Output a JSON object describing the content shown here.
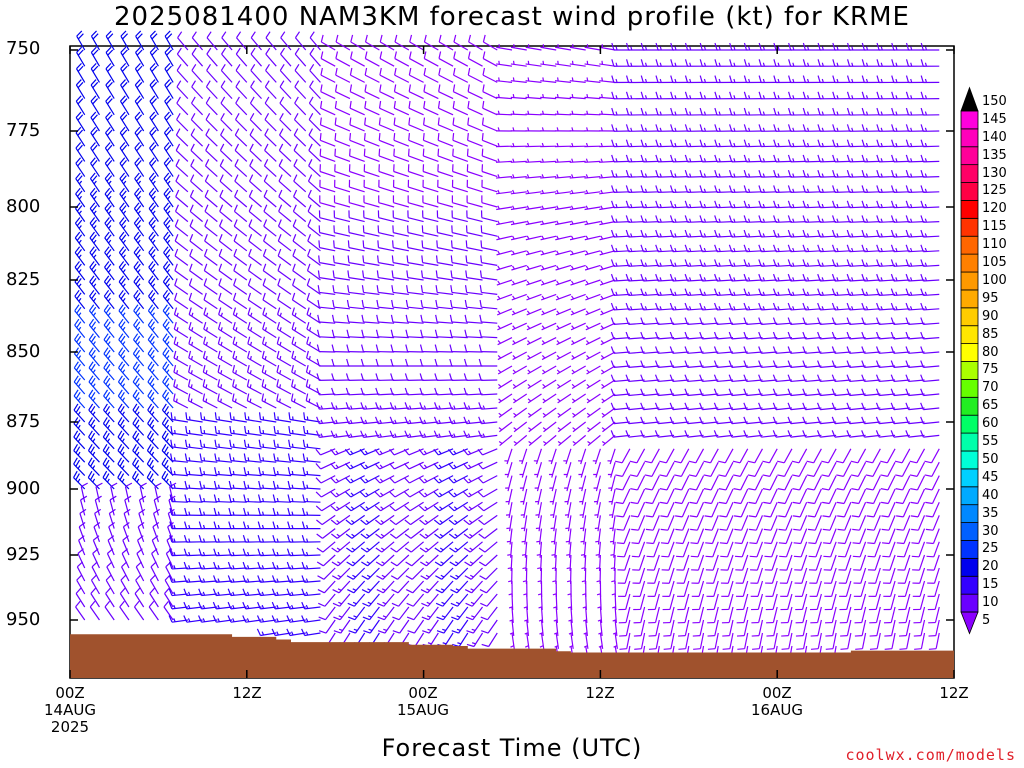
{
  "chart_data": {
    "type": "wind-barb profile",
    "title": "2025081400 NAM3KM forecast wind profile (kt) for KRME",
    "xlabel": "Forecast Time (UTC)",
    "x_ticks": [
      {
        "label": "00Z",
        "sub1": "14AUG",
        "sub2": "2025",
        "hour": 0
      },
      {
        "label": "12Z",
        "sub1": "",
        "sub2": "",
        "hour": 12
      },
      {
        "label": "00Z",
        "sub1": "15AUG",
        "sub2": "",
        "hour": 24
      },
      {
        "label": "12Z",
        "sub1": "",
        "sub2": "",
        "hour": 36
      },
      {
        "label": "00Z",
        "sub1": "16AUG",
        "sub2": "",
        "hour": 48
      },
      {
        "label": "12Z",
        "sub1": "",
        "sub2": "",
        "hour": 60
      }
    ],
    "y_ticks": [
      750,
      775,
      800,
      825,
      850,
      875,
      900,
      925,
      950
    ],
    "xlim_hours": [
      0,
      60
    ],
    "ylim_hpa": [
      750,
      965
    ],
    "colorbar": {
      "levels": [
        5,
        10,
        15,
        20,
        25,
        30,
        35,
        40,
        45,
        50,
        55,
        60,
        65,
        70,
        75,
        80,
        85,
        90,
        95,
        100,
        105,
        110,
        115,
        120,
        125,
        130,
        135,
        140,
        145,
        150
      ],
      "colors": [
        "#8a00ff",
        "#6a00ff",
        "#3300ff",
        "#0000ee",
        "#0033ff",
        "#0060ff",
        "#0088ff",
        "#00aaff",
        "#00d0ff",
        "#00ffd8",
        "#00ffaa",
        "#00ff66",
        "#22ee22",
        "#66ff00",
        "#aaff00",
        "#ffff00",
        "#ffe600",
        "#ffcc00",
        "#ffaa00",
        "#ff9900",
        "#ff8000",
        "#ff6600",
        "#ff3300",
        "#ff0000",
        "#ff0044",
        "#ff0066",
        "#ff0099",
        "#ff00bb",
        "#ff00dd",
        "#ff00ff"
      ]
    },
    "terrain_color": "#a0522d",
    "note": "Per-barb wind values are not individually readable; the barb field is rendered procedurally."
  },
  "credit": "coolwx.com/models"
}
